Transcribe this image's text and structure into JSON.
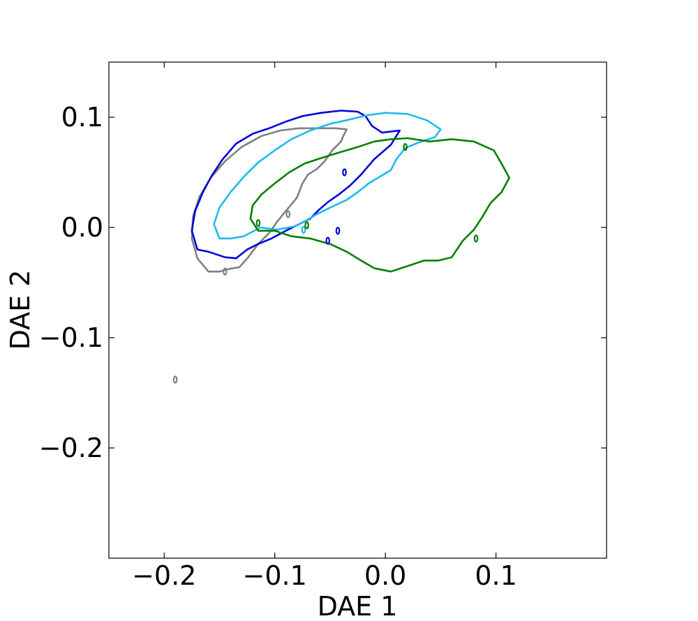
{
  "chart_data": {
    "type": "contour",
    "xlabel": "DAE 1",
    "ylabel": "DAE 2",
    "xlim": [
      -0.25,
      0.2
    ],
    "ylim": [
      -0.3,
      0.15
    ],
    "xticks": [
      -0.2,
      -0.1,
      0.0,
      0.1
    ],
    "yticks": [
      0.1,
      0.0,
      -0.1,
      -0.2
    ],
    "xtick_labels": [
      "−0.2",
      "−0.1",
      "0.0",
      "0.1"
    ],
    "ytick_labels": [
      "0.1",
      "0.0",
      "−0.1",
      "−0.2"
    ],
    "grid": false,
    "legend": "none",
    "series": [
      {
        "color": "#808080",
        "contours": [
          [
            [
              -0.143,
              -0.038
            ],
            [
              -0.132,
              -0.036
            ],
            [
              -0.124,
              -0.027
            ],
            [
              -0.115,
              -0.015
            ],
            [
              -0.105,
              -0.005
            ],
            [
              -0.098,
              0.005
            ],
            [
              -0.09,
              0.015
            ],
            [
              -0.08,
              0.027
            ],
            [
              -0.075,
              0.04
            ],
            [
              -0.07,
              0.048
            ],
            [
              -0.062,
              0.053
            ],
            [
              -0.055,
              0.06
            ],
            [
              -0.048,
              0.07
            ],
            [
              -0.04,
              0.078
            ],
            [
              -0.038,
              0.083
            ],
            [
              -0.035,
              0.089
            ],
            [
              -0.045,
              0.09
            ],
            [
              -0.06,
              0.09
            ],
            [
              -0.078,
              0.09
            ],
            [
              -0.095,
              0.088
            ],
            [
              -0.112,
              0.083
            ],
            [
              -0.13,
              0.073
            ],
            [
              -0.145,
              0.06
            ],
            [
              -0.158,
              0.045
            ],
            [
              -0.168,
              0.028
            ],
            [
              -0.174,
              0.01
            ],
            [
              -0.175,
              -0.01
            ],
            [
              -0.17,
              -0.028
            ],
            [
              -0.16,
              -0.04
            ],
            [
              -0.15,
              -0.04
            ],
            [
              -0.143,
              -0.038
            ]
          ]
        ],
        "islands": [
          [
            -0.145,
            -0.04
          ],
          [
            -0.19,
            -0.138
          ],
          [
            -0.088,
            0.012
          ]
        ]
      },
      {
        "color": "#0000dd",
        "contours": [
          [
            [
              -0.17,
              -0.02
            ],
            [
              -0.175,
              -0.003
            ],
            [
              -0.172,
              0.015
            ],
            [
              -0.165,
              0.032
            ],
            [
              -0.157,
              0.047
            ],
            [
              -0.147,
              0.062
            ],
            [
              -0.135,
              0.076
            ],
            [
              -0.12,
              0.085
            ],
            [
              -0.105,
              0.09
            ],
            [
              -0.09,
              0.096
            ],
            [
              -0.075,
              0.101
            ],
            [
              -0.058,
              0.104
            ],
            [
              -0.04,
              0.106
            ],
            [
              -0.025,
              0.105
            ],
            [
              -0.018,
              0.101
            ],
            [
              -0.012,
              0.092
            ],
            [
              -0.003,
              0.086
            ],
            [
              0.013,
              0.088
            ],
            [
              0.005,
              0.075
            ],
            [
              -0.01,
              0.062
            ],
            [
              -0.022,
              0.048
            ],
            [
              -0.032,
              0.038
            ],
            [
              -0.042,
              0.03
            ],
            [
              -0.052,
              0.023
            ],
            [
              -0.06,
              0.016
            ],
            [
              -0.068,
              0.008
            ],
            [
              -0.078,
              0.003
            ],
            [
              -0.09,
              -0.003
            ],
            [
              -0.103,
              -0.01
            ],
            [
              -0.115,
              -0.015
            ],
            [
              -0.125,
              -0.02
            ],
            [
              -0.135,
              -0.028
            ],
            [
              -0.145,
              -0.027
            ],
            [
              -0.16,
              -0.022
            ],
            [
              -0.17,
              -0.02
            ]
          ]
        ],
        "islands": [
          [
            -0.052,
            -0.012
          ],
          [
            -0.037,
            0.05
          ],
          [
            -0.043,
            -0.003
          ]
        ]
      },
      {
        "color": "#1eb9f0",
        "contours": [
          [
            [
              -0.15,
              -0.01
            ],
            [
              -0.155,
              0.003
            ],
            [
              -0.15,
              0.018
            ],
            [
              -0.14,
              0.032
            ],
            [
              -0.128,
              0.046
            ],
            [
              -0.115,
              0.059
            ],
            [
              -0.1,
              0.07
            ],
            [
              -0.085,
              0.08
            ],
            [
              -0.068,
              0.088
            ],
            [
              -0.05,
              0.094
            ],
            [
              -0.032,
              0.098
            ],
            [
              -0.015,
              0.102
            ],
            [
              0.0,
              0.104
            ],
            [
              0.02,
              0.103
            ],
            [
              0.038,
              0.097
            ],
            [
              0.05,
              0.089
            ],
            [
              0.045,
              0.082
            ],
            [
              0.03,
              0.077
            ],
            [
              0.018,
              0.072
            ],
            [
              0.01,
              0.062
            ],
            [
              0.005,
              0.052
            ],
            [
              -0.005,
              0.046
            ],
            [
              -0.015,
              0.04
            ],
            [
              -0.025,
              0.032
            ],
            [
              -0.035,
              0.025
            ],
            [
              -0.05,
              0.018
            ],
            [
              -0.062,
              0.012
            ],
            [
              -0.072,
              0.006
            ],
            [
              -0.082,
              0.001
            ],
            [
              -0.098,
              -0.002
            ],
            [
              -0.113,
              0.0
            ],
            [
              -0.128,
              -0.008
            ],
            [
              -0.14,
              -0.01
            ],
            [
              -0.15,
              -0.01
            ]
          ]
        ],
        "islands": [
          [
            -0.074,
            -0.002
          ]
        ]
      },
      {
        "color": "#008000",
        "contours": [
          [
            [
              -0.115,
              -0.003
            ],
            [
              -0.122,
              0.008
            ],
            [
              -0.12,
              0.02
            ],
            [
              -0.112,
              0.03
            ],
            [
              -0.1,
              0.04
            ],
            [
              -0.087,
              0.05
            ],
            [
              -0.073,
              0.058
            ],
            [
              -0.058,
              0.063
            ],
            [
              -0.042,
              0.068
            ],
            [
              -0.025,
              0.073
            ],
            [
              -0.01,
              0.078
            ],
            [
              0.005,
              0.08
            ],
            [
              0.02,
              0.081
            ],
            [
              0.04,
              0.078
            ],
            [
              0.06,
              0.08
            ],
            [
              0.08,
              0.078
            ],
            [
              0.098,
              0.07
            ],
            [
              0.105,
              0.058
            ],
            [
              0.112,
              0.045
            ],
            [
              0.105,
              0.032
            ],
            [
              0.095,
              0.022
            ],
            [
              0.088,
              0.01
            ],
            [
              0.08,
              -0.002
            ],
            [
              0.07,
              -0.012
            ],
            [
              0.06,
              -0.027
            ],
            [
              0.048,
              -0.03
            ],
            [
              0.035,
              -0.03
            ],
            [
              0.02,
              -0.035
            ],
            [
              0.005,
              -0.04
            ],
            [
              -0.01,
              -0.037
            ],
            [
              -0.022,
              -0.03
            ],
            [
              -0.035,
              -0.022
            ],
            [
              -0.05,
              -0.015
            ],
            [
              -0.068,
              -0.01
            ],
            [
              -0.085,
              -0.008
            ],
            [
              -0.1,
              -0.003
            ],
            [
              -0.115,
              -0.003
            ]
          ]
        ],
        "islands": [
          [
            -0.115,
            0.004
          ],
          [
            0.018,
            0.073
          ],
          [
            -0.071,
            0.002
          ],
          [
            0.082,
            -0.01
          ]
        ]
      }
    ]
  }
}
